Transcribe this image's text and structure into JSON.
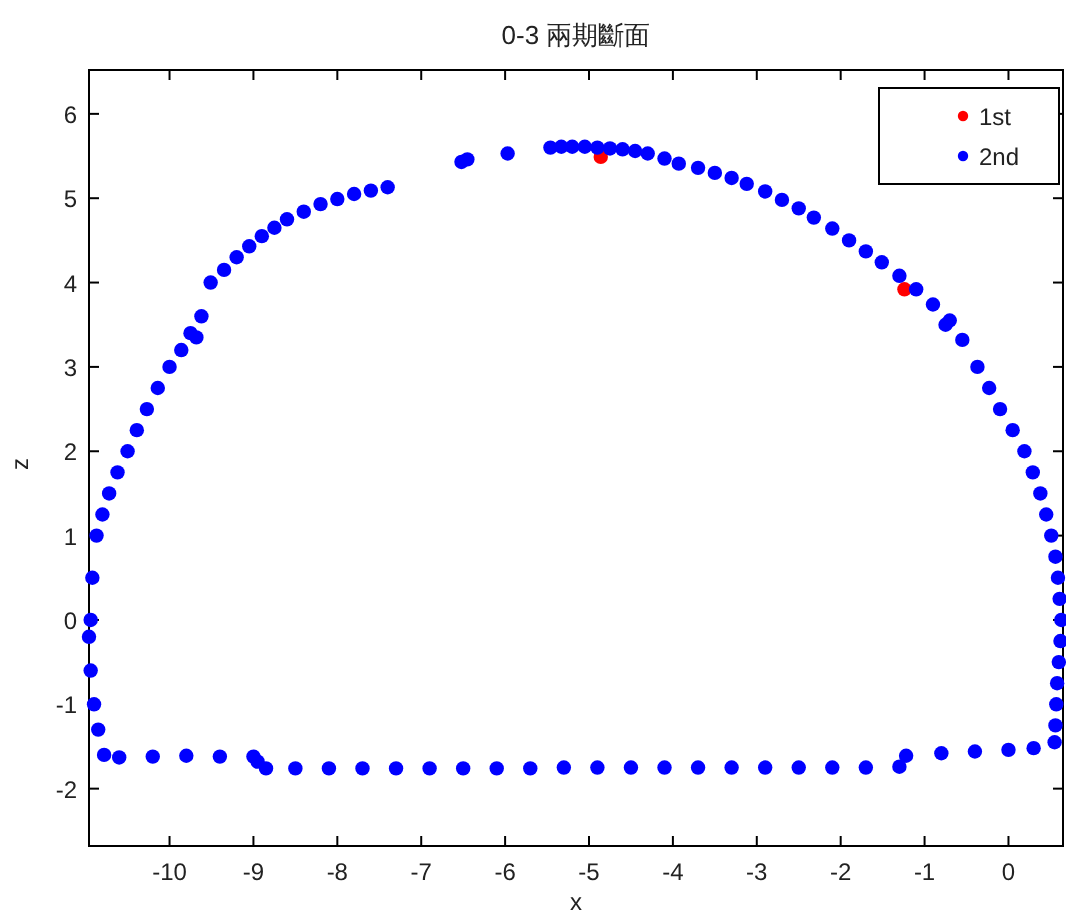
{
  "chart_data": {
    "type": "scatter",
    "title": "0-3 兩期斷面",
    "xlabel": "x",
    "ylabel": "z",
    "xlim": [
      -10.96,
      0.65
    ],
    "ylim": [
      -2.68,
      6.52
    ],
    "xticks": [
      -10,
      -9,
      -8,
      -7,
      -6,
      -5,
      -4,
      -3,
      -2,
      -1,
      0
    ],
    "yticks": [
      -2,
      -1,
      0,
      1,
      2,
      3,
      4,
      5,
      6
    ],
    "legend": "top right",
    "marker": "circle",
    "series": [
      {
        "name": "1st",
        "color": "#ff0000",
        "x": [
          -4.86,
          -1.24
        ],
        "values": [
          5.49,
          3.92
        ]
      },
      {
        "name": "2nd",
        "color": "#0000ff",
        "x": [
          -10.96,
          -10.94,
          -10.92,
          -10.87,
          -10.8,
          -10.72,
          -10.62,
          -10.5,
          -10.39,
          -10.27,
          -10.14,
          -10.0,
          -9.86,
          -9.75,
          -9.68,
          -9.62,
          -9.51,
          -9.35,
          -9.2,
          -9.05,
          -8.9,
          -8.75,
          -8.6,
          -8.4,
          -8.2,
          -8.0,
          -7.8,
          -7.6,
          -7.4,
          -6.52,
          -6.45,
          -5.97,
          -5.46,
          -5.33,
          -5.2,
          -5.05,
          -4.9,
          -4.75,
          -4.6,
          -4.45,
          -4.3,
          -4.1,
          -3.93,
          -3.7,
          -3.5,
          -3.3,
          -3.12,
          -2.9,
          -2.7,
          -2.5,
          -2.32,
          -2.1,
          -1.9,
          -1.7,
          -1.51,
          -1.3,
          -1.1,
          -0.9,
          -0.75,
          -0.7,
          -0.55,
          -0.37,
          -0.23,
          -0.1,
          0.05,
          0.19,
          0.29,
          0.38,
          0.45,
          0.51,
          0.56,
          0.59,
          0.61,
          0.63,
          0.62,
          0.6,
          0.58,
          0.57,
          0.56,
          0.55,
          0.3,
          0.0,
          -0.4,
          -0.8,
          -1.22,
          -1.3,
          -1.7,
          -2.1,
          -2.5,
          -2.9,
          -3.3,
          -3.7,
          -4.1,
          -4.5,
          -4.9,
          -5.3,
          -5.7,
          -6.1,
          -6.5,
          -6.9,
          -7.3,
          -7.7,
          -8.1,
          -8.5,
          -8.85,
          -8.95,
          -9.0,
          -9.4,
          -9.8,
          -10.2,
          -10.6,
          -10.78,
          -10.85,
          -10.9,
          -10.94
        ],
        "values": [
          -0.2,
          0.0,
          0.5,
          1.0,
          1.25,
          1.5,
          1.75,
          2.0,
          2.25,
          2.5,
          2.75,
          3.0,
          3.2,
          3.4,
          3.35,
          3.6,
          4.0,
          4.15,
          4.3,
          4.43,
          4.55,
          4.65,
          4.75,
          4.84,
          4.93,
          4.99,
          5.05,
          5.09,
          5.13,
          5.43,
          5.46,
          5.53,
          5.6,
          5.61,
          5.61,
          5.61,
          5.6,
          5.59,
          5.58,
          5.56,
          5.53,
          5.47,
          5.41,
          5.36,
          5.3,
          5.24,
          5.17,
          5.08,
          4.98,
          4.88,
          4.77,
          4.64,
          4.5,
          4.37,
          4.24,
          4.08,
          3.92,
          3.74,
          3.5,
          3.55,
          3.32,
          3.0,
          2.75,
          2.5,
          2.25,
          2.0,
          1.75,
          1.5,
          1.25,
          1.0,
          0.75,
          0.5,
          0.25,
          0.0,
          -0.25,
          -0.5,
          -0.75,
          -1.0,
          -1.25,
          -1.45,
          -1.52,
          -1.54,
          -1.56,
          -1.58,
          -1.61,
          -1.74,
          -1.75,
          -1.75,
          -1.75,
          -1.75,
          -1.75,
          -1.75,
          -1.75,
          -1.75,
          -1.75,
          -1.75,
          -1.76,
          -1.76,
          -1.76,
          -1.76,
          -1.76,
          -1.76,
          -1.76,
          -1.76,
          -1.76,
          -1.68,
          -1.62,
          -1.62,
          -1.61,
          -1.62,
          -1.63,
          -1.6,
          -1.3,
          -1.0,
          -0.6
        ]
      }
    ]
  }
}
